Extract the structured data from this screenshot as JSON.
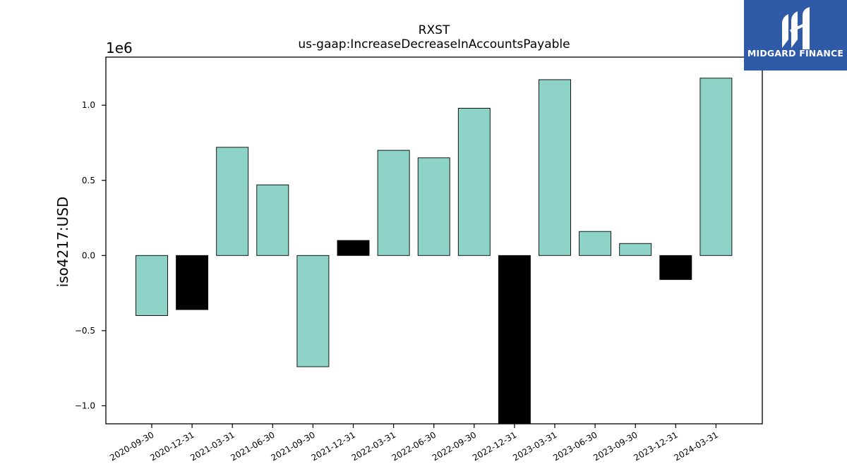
{
  "chart_data": {
    "type": "bar",
    "title": "RXST",
    "subtitle": "us-gaap:IncreaseDecreaseInAccountsPayable",
    "xlabel": "",
    "ylabel": "iso4217:USD",
    "scale_label": "1e6",
    "ylim": [
      -1.12,
      1.32
    ],
    "yticks": [
      -1.0,
      -0.5,
      0.0,
      0.5,
      1.0
    ],
    "ytick_labels": [
      "−1.0",
      "−0.5",
      "0.0",
      "0.5",
      "1.0"
    ],
    "categories": [
      "2020-09-30",
      "2020-12-31",
      "2021-03-31",
      "2021-06-30",
      "2021-09-30",
      "2021-12-31",
      "2022-03-31",
      "2022-06-30",
      "2022-09-30",
      "2022-12-31",
      "2023-03-31",
      "2023-06-30",
      "2023-09-30",
      "2023-12-31",
      "2024-03-31"
    ],
    "values": [
      -0.4,
      -0.36,
      0.72,
      0.47,
      -0.74,
      0.1,
      0.7,
      0.65,
      0.98,
      -1.12,
      1.17,
      0.16,
      0.08,
      -0.16,
      1.18
    ],
    "bar_colors": [
      "#8dd3c7",
      "#000000",
      "#8dd3c7",
      "#8dd3c7",
      "#8dd3c7",
      "#000000",
      "#8dd3c7",
      "#8dd3c7",
      "#8dd3c7",
      "#000000",
      "#8dd3c7",
      "#8dd3c7",
      "#8dd3c7",
      "#000000",
      "#8dd3c7"
    ],
    "grid": false
  },
  "logo": {
    "text": "MIDGARD FINANCE",
    "background": "#2f5aa8"
  }
}
